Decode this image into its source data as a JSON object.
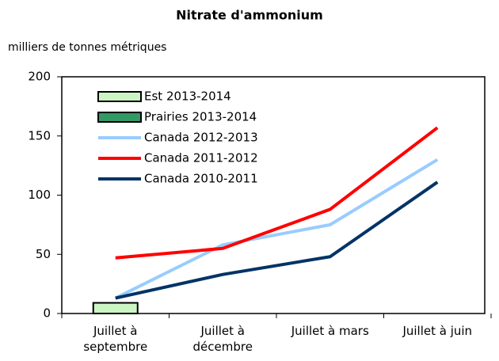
{
  "chart_data": {
    "type": "bar",
    "title": "Nitrate d'ammonium",
    "y_label": "milliers de tonnes métriques",
    "categories": [
      "Juillet à septembre",
      "Juillet à décembre",
      "Juillet à mars",
      "Juillet à juin"
    ],
    "series": [
      {
        "name": "Est 2013-2014",
        "type": "bar",
        "color": "#ccf5c4",
        "values": [
          9,
          null,
          null,
          null
        ]
      },
      {
        "name": "Prairies 2013-2014",
        "type": "bar",
        "color": "#339966",
        "values": [
          null,
          null,
          null,
          null
        ]
      },
      {
        "name": "Canada 2012-2013",
        "type": "line",
        "color": "#99ccff",
        "values": [
          13,
          58,
          75,
          130
        ]
      },
      {
        "name": "Canada 2011-2012",
        "type": "line",
        "color": "#ff0000",
        "values": [
          47,
          55,
          88,
          157
        ]
      },
      {
        "name": "Canada 2010-2011",
        "type": "line",
        "color": "#003366",
        "values": [
          13,
          33,
          48,
          111
        ]
      }
    ],
    "ylim": [
      0,
      200
    ],
    "yticks": [
      0,
      50,
      100,
      150,
      200
    ],
    "grid": false,
    "legend": "upper left"
  }
}
